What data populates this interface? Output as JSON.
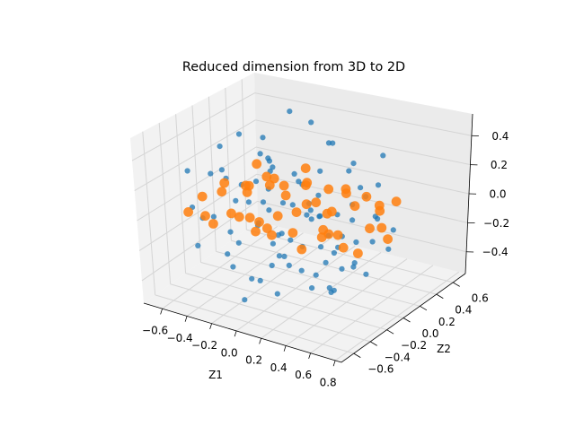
{
  "chart_data": {
    "type": "scatter",
    "title": "Reduced dimension from 3D to 2D",
    "xlabel": "Z1",
    "ylabel": "Z2",
    "zlabel": "",
    "xlim": [
      -0.75,
      0.85
    ],
    "ylim": [
      -0.75,
      0.75
    ],
    "zlim": [
      -0.55,
      0.55
    ],
    "x_ticks": [
      "−0.6",
      "−0.4",
      "−0.2",
      "0.0",
      "0.2",
      "0.4",
      "0.6",
      "0.8"
    ],
    "y_ticks": [
      "−0.6",
      "−0.4",
      "−0.2",
      "0.0",
      "0.2",
      "0.4",
      "0.6"
    ],
    "z_ticks": [
      "−0.4",
      "−0.2",
      "0.0",
      "0.2",
      "0.4"
    ],
    "x_tick_values": [
      -0.6,
      -0.4,
      -0.2,
      0.0,
      0.2,
      0.4,
      0.6,
      0.8
    ],
    "y_tick_values": [
      -0.6,
      -0.4,
      -0.2,
      0.0,
      0.2,
      0.4,
      0.6
    ],
    "z_tick_values": [
      -0.4,
      -0.2,
      0.0,
      0.2,
      0.4
    ],
    "grid": true,
    "series": [
      {
        "color": "#1f77b4",
        "points": [
          [
            -0.52,
            0.18,
            0.34
          ],
          [
            -0.41,
            -0.22,
            0.41
          ],
          [
            -0.3,
            0.44,
            0.46
          ],
          [
            -0.18,
            -0.1,
            0.37
          ],
          [
            -0.05,
            0.3,
            0.48
          ],
          [
            0.08,
            -0.35,
            0.42
          ],
          [
            0.2,
            0.12,
            0.45
          ],
          [
            0.33,
            -0.18,
            0.39
          ],
          [
            0.45,
            0.36,
            0.33
          ],
          [
            0.55,
            -0.05,
            0.28
          ],
          [
            -0.62,
            -0.3,
            0.22
          ],
          [
            -0.48,
            0.4,
            0.25
          ],
          [
            -0.36,
            -0.42,
            0.3
          ],
          [
            -0.22,
            0.05,
            0.28
          ],
          [
            -0.1,
            -0.28,
            0.26
          ],
          [
            0.02,
            0.44,
            0.3
          ],
          [
            0.15,
            -0.12,
            0.24
          ],
          [
            0.28,
            0.28,
            0.27
          ],
          [
            0.4,
            -0.4,
            0.22
          ],
          [
            0.52,
            0.2,
            0.2
          ],
          [
            0.62,
            -0.25,
            0.15
          ],
          [
            -0.58,
            0.05,
            0.12
          ],
          [
            -0.44,
            -0.12,
            0.15
          ],
          [
            -0.32,
            0.22,
            0.18
          ],
          [
            -0.2,
            -0.38,
            0.14
          ],
          [
            -0.08,
            0.14,
            0.17
          ],
          [
            0.05,
            -0.2,
            0.12
          ],
          [
            0.18,
            0.38,
            0.16
          ],
          [
            0.3,
            -0.3,
            0.13
          ],
          [
            0.42,
            0.05,
            0.1
          ],
          [
            -0.5,
            -0.45,
            0.05
          ],
          [
            -0.38,
            0.32,
            0.06
          ],
          [
            -0.25,
            -0.15,
            0.04
          ],
          [
            -0.12,
            0.25,
            0.07
          ],
          [
            0.0,
            -0.42,
            0.05
          ],
          [
            0.12,
            0.0,
            0.06
          ],
          [
            0.25,
            -0.08,
            0.03
          ],
          [
            0.36,
            0.3,
            0.05
          ],
          [
            0.48,
            -0.32,
            0.04
          ],
          [
            0.58,
            0.1,
            0.02
          ],
          [
            -0.56,
            0.25,
            -0.05
          ],
          [
            -0.42,
            -0.32,
            -0.04
          ],
          [
            -0.3,
            0.1,
            -0.06
          ],
          [
            -0.16,
            -0.05,
            -0.03
          ],
          [
            -0.04,
            0.36,
            -0.05
          ],
          [
            0.1,
            -0.3,
            -0.04
          ],
          [
            0.22,
            0.18,
            -0.06
          ],
          [
            0.34,
            -0.42,
            -0.03
          ],
          [
            0.46,
            0.26,
            -0.05
          ],
          [
            0.56,
            -0.12,
            -0.06
          ],
          [
            -0.6,
            -0.18,
            -0.14
          ],
          [
            -0.46,
            0.42,
            -0.12
          ],
          [
            -0.34,
            -0.25,
            -0.15
          ],
          [
            -0.2,
            0.3,
            -0.13
          ],
          [
            -0.06,
            -0.1,
            -0.16
          ],
          [
            0.06,
            0.22,
            -0.12
          ],
          [
            0.18,
            -0.4,
            -0.14
          ],
          [
            0.32,
            0.08,
            -0.15
          ],
          [
            0.44,
            -0.2,
            -0.13
          ],
          [
            0.54,
            0.35,
            -0.16
          ],
          [
            -0.52,
            -0.38,
            -0.24
          ],
          [
            -0.38,
            0.15,
            -0.26
          ],
          [
            -0.26,
            -0.42,
            -0.22
          ],
          [
            -0.12,
            0.4,
            -0.25
          ],
          [
            0.02,
            -0.22,
            -0.24
          ],
          [
            0.14,
            0.1,
            -0.27
          ],
          [
            0.28,
            -0.35,
            -0.23
          ],
          [
            0.4,
            0.32,
            -0.26
          ],
          [
            0.5,
            -0.05,
            -0.24
          ],
          [
            0.6,
            0.2,
            -0.22
          ],
          [
            -0.44,
            0.0,
            -0.34
          ],
          [
            -0.3,
            -0.3,
            -0.36
          ],
          [
            -0.16,
            0.2,
            -0.33
          ],
          [
            -0.02,
            -0.4,
            -0.35
          ],
          [
            0.12,
            0.34,
            -0.37
          ],
          [
            0.26,
            -0.15,
            -0.34
          ],
          [
            0.38,
            0.12,
            -0.36
          ],
          [
            0.5,
            -0.3,
            -0.33
          ],
          [
            -0.36,
            0.3,
            -0.44
          ],
          [
            -0.22,
            -0.2,
            -0.46
          ],
          [
            -0.08,
            0.05,
            -0.43
          ],
          [
            0.06,
            -0.32,
            -0.45
          ],
          [
            0.2,
            0.26,
            -0.47
          ],
          [
            0.32,
            -0.08,
            -0.44
          ],
          [
            0.44,
            0.18,
            -0.42
          ],
          [
            -0.14,
            -0.42,
            -0.5
          ],
          [
            0.0,
            0.38,
            -0.52
          ],
          [
            0.16,
            -0.05,
            -0.49
          ],
          [
            0.28,
            0.0,
            -0.51
          ],
          [
            -0.26,
            0.12,
            -0.5
          ]
        ]
      },
      {
        "color": "#ff7f0e",
        "points": [
          [
            -0.62,
            0.1,
            -0.06
          ],
          [
            -0.58,
            -0.2,
            0.02
          ],
          [
            -0.55,
            0.3,
            -0.12
          ],
          [
            -0.5,
            -0.05,
            0.08
          ],
          [
            -0.47,
            0.2,
            -0.02
          ],
          [
            -0.44,
            -0.3,
            -0.1
          ],
          [
            -0.4,
            0.05,
            0.05
          ],
          [
            -0.37,
            0.35,
            0.0
          ],
          [
            -0.33,
            -0.15,
            -0.08
          ],
          [
            -0.3,
            0.15,
            0.1
          ],
          [
            -0.26,
            -0.35,
            0.03
          ],
          [
            -0.22,
            0.25,
            -0.05
          ],
          [
            -0.18,
            0.0,
            0.12
          ],
          [
            -0.14,
            -0.25,
            -0.1
          ],
          [
            -0.1,
            0.32,
            0.04
          ],
          [
            -0.06,
            -0.1,
            -0.03
          ],
          [
            -0.02,
            0.18,
            0.09
          ],
          [
            0.02,
            -0.3,
            -0.07
          ],
          [
            0.06,
            0.06,
            0.02
          ],
          [
            0.1,
            0.3,
            -0.11
          ],
          [
            0.14,
            -0.18,
            0.07
          ],
          [
            0.18,
            0.12,
            -0.04
          ],
          [
            0.22,
            -0.35,
            0.01
          ],
          [
            0.26,
            0.22,
            0.11
          ],
          [
            0.3,
            -0.05,
            -0.09
          ],
          [
            0.34,
            0.34,
            0.03
          ],
          [
            0.38,
            -0.25,
            -0.02
          ],
          [
            0.42,
            0.08,
            0.08
          ],
          [
            0.46,
            -0.12,
            -0.12
          ],
          [
            0.5,
            0.25,
            0.0
          ],
          [
            0.54,
            -0.3,
            0.05
          ],
          [
            0.58,
            0.15,
            -0.06
          ],
          [
            0.62,
            -0.05,
            0.02
          ],
          [
            0.66,
            0.1,
            -0.1
          ],
          [
            -0.6,
            -0.35,
            -0.04
          ],
          [
            -0.52,
            0.38,
            0.06
          ],
          [
            -0.42,
            -0.42,
            0.0
          ],
          [
            -0.34,
            0.42,
            -0.07
          ],
          [
            -0.24,
            -0.05,
            -0.13
          ],
          [
            -0.16,
            0.4,
            0.1
          ],
          [
            -0.08,
            -0.4,
            0.06
          ],
          [
            0.0,
            0.42,
            -0.02
          ],
          [
            0.08,
            -0.44,
            0.04
          ],
          [
            0.16,
            0.38,
            0.0
          ],
          [
            0.24,
            -0.1,
            0.13
          ],
          [
            0.32,
            -0.4,
            -0.06
          ],
          [
            0.4,
            0.4,
            -0.04
          ],
          [
            0.48,
            -0.38,
            0.1
          ],
          [
            0.56,
            0.35,
            0.04
          ],
          [
            0.64,
            -0.22,
            -0.08
          ]
        ]
      }
    ]
  }
}
